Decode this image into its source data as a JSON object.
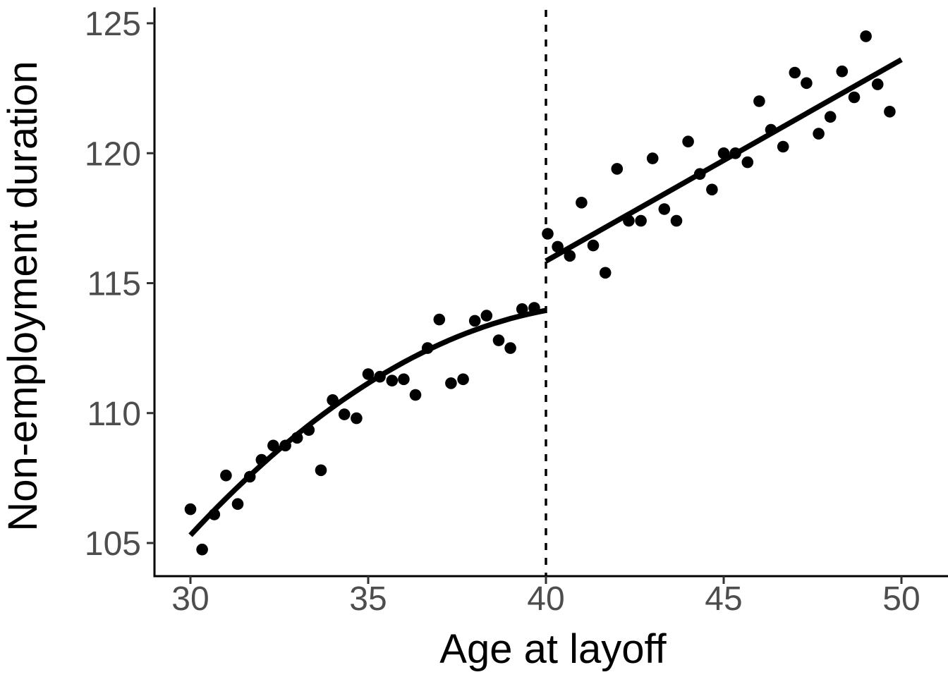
{
  "chart_data": {
    "type": "scatter",
    "title": "",
    "xlabel": "Age at layoff",
    "ylabel": "Non-employment duration",
    "xlim": [
      29.0,
      51.3
    ],
    "ylim": [
      103.7,
      125.6
    ],
    "x_ticks": [
      30,
      35,
      40,
      45,
      50
    ],
    "y_ticks": [
      105,
      110,
      115,
      120,
      125
    ],
    "grid": "off",
    "legend": "none",
    "cutoff": {
      "x": 40,
      "style": "dashed",
      "orientation": "vertical"
    },
    "series": [
      {
        "name": "observations-left",
        "kind": "points",
        "points": [
          [
            30.0,
            106.3
          ],
          [
            30.33,
            104.75
          ],
          [
            30.67,
            106.1
          ],
          [
            31.0,
            107.6
          ],
          [
            31.33,
            106.5
          ],
          [
            31.67,
            107.55
          ],
          [
            32.0,
            108.2
          ],
          [
            32.33,
            108.75
          ],
          [
            32.67,
            108.75
          ],
          [
            33.0,
            109.05
          ],
          [
            33.33,
            109.35
          ],
          [
            33.67,
            107.8
          ],
          [
            34.0,
            110.5
          ],
          [
            34.33,
            109.95
          ],
          [
            34.67,
            109.8
          ],
          [
            35.0,
            111.5
          ],
          [
            35.33,
            111.4
          ],
          [
            35.67,
            111.25
          ],
          [
            36.0,
            111.3
          ],
          [
            36.33,
            110.7
          ],
          [
            36.67,
            112.5
          ],
          [
            37.0,
            113.6
          ],
          [
            37.33,
            111.15
          ],
          [
            37.67,
            111.3
          ],
          [
            38.0,
            113.55
          ],
          [
            38.33,
            113.75
          ],
          [
            38.67,
            112.8
          ],
          [
            39.0,
            112.5
          ],
          [
            39.33,
            114.0
          ],
          [
            39.67,
            114.05
          ]
        ]
      },
      {
        "name": "observations-right",
        "kind": "points",
        "points": [
          [
            40.05,
            116.9
          ],
          [
            40.33,
            116.4
          ],
          [
            40.67,
            116.05
          ],
          [
            41.0,
            118.1
          ],
          [
            41.33,
            116.45
          ],
          [
            41.67,
            115.4
          ],
          [
            42.0,
            119.4
          ],
          [
            42.33,
            117.4
          ],
          [
            42.67,
            117.4
          ],
          [
            43.0,
            119.8
          ],
          [
            43.33,
            117.85
          ],
          [
            43.67,
            117.4
          ],
          [
            44.0,
            120.45
          ],
          [
            44.33,
            119.2
          ],
          [
            44.67,
            118.6
          ],
          [
            45.0,
            120.0
          ],
          [
            45.33,
            120.0
          ],
          [
            45.67,
            119.65
          ],
          [
            46.0,
            122.0
          ],
          [
            46.33,
            120.9
          ],
          [
            46.67,
            120.25
          ],
          [
            47.0,
            123.1
          ],
          [
            47.33,
            122.7
          ],
          [
            47.67,
            120.75
          ],
          [
            48.0,
            121.4
          ],
          [
            48.33,
            123.15
          ],
          [
            48.67,
            122.15
          ],
          [
            49.0,
            124.5
          ],
          [
            49.33,
            122.65
          ],
          [
            49.67,
            121.6
          ]
        ]
      },
      {
        "name": "fit-left",
        "kind": "curve",
        "fit_type": "quadratic",
        "coeffs": {
          "a": 105.3,
          "b": 1.475,
          "c": -0.061,
          "x0": 30
        },
        "x_range": [
          30.0,
          40.0
        ]
      },
      {
        "name": "fit-right",
        "kind": "line",
        "fit_type": "linear",
        "endpoints": [
          [
            40.0,
            115.85
          ],
          [
            50.0,
            123.6
          ]
        ]
      }
    ]
  },
  "style": {
    "background_color": "#ffffff",
    "point_color": "#000000",
    "fit_line_color": "#000000",
    "cutoff_line_color": "#000000",
    "axis_line_color": "#000000",
    "tick_color": "#333333",
    "tick_label_color": "#4d4d4d",
    "axis_title_color": "#000000"
  }
}
